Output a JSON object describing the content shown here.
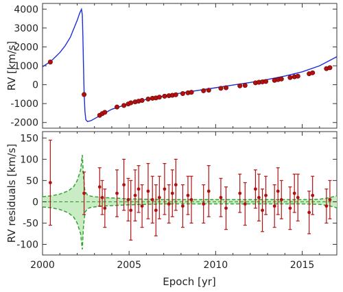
{
  "chart_data": [
    {
      "panel": "top",
      "type": "line",
      "ylabel": "RV [km/s]",
      "xlim": [
        2000,
        2017
      ],
      "ylim": [
        -2300,
        4300
      ],
      "yticks": [
        -2000,
        -1000,
        0,
        1000,
        2000,
        3000,
        4000
      ],
      "grid": false,
      "model_color": "#1a2bd6",
      "point_color": "#b01010",
      "model_curve": {
        "x": [
          2000.0,
          2000.5,
          2001.0,
          2001.3,
          2001.6,
          2001.8,
          2002.0,
          2002.15,
          2002.25,
          2002.3,
          2002.33,
          2002.36,
          2002.4,
          2002.45,
          2002.5,
          2002.6,
          2002.8,
          2003.0,
          2003.5,
          2004.0,
          2005.0,
          2006.0,
          2007.0,
          2008.0,
          2009.0,
          2010.0,
          2011.0,
          2012.0,
          2013.0,
          2014.0,
          2015.0,
          2016.0,
          2017.0
        ],
        "y": [
          950,
          1250,
          1700,
          2050,
          2500,
          2950,
          3400,
          3800,
          3990,
          3700,
          2600,
          1200,
          -400,
          -1400,
          -1850,
          -1950,
          -1900,
          -1800,
          -1550,
          -1300,
          -1000,
          -780,
          -600,
          -440,
          -300,
          -160,
          -20,
          120,
          280,
          460,
          680,
          1000,
          1480
        ]
      },
      "points": {
        "x": [
          2000.45,
          2002.4,
          2003.3,
          2003.45,
          2003.6,
          2004.3,
          2004.7,
          2004.95,
          2005.1,
          2005.35,
          2005.55,
          2005.75,
          2006.1,
          2006.35,
          2006.55,
          2006.75,
          2007.05,
          2007.3,
          2007.5,
          2007.7,
          2008.1,
          2008.4,
          2008.6,
          2009.3,
          2009.6,
          2010.3,
          2010.6,
          2011.4,
          2011.7,
          2012.3,
          2012.5,
          2012.7,
          2012.9,
          2013.4,
          2013.6,
          2013.8,
          2014.3,
          2014.55,
          2014.75,
          2015.4,
          2015.6,
          2016.4,
          2016.6
        ],
        "y": [
          1200,
          -520,
          -1620,
          -1530,
          -1460,
          -1180,
          -1100,
          -1020,
          -960,
          -910,
          -870,
          -830,
          -760,
          -720,
          -700,
          -660,
          -610,
          -580,
          -560,
          -530,
          -470,
          -430,
          -400,
          -320,
          -290,
          -190,
          -160,
          -60,
          -40,
          100,
          130,
          150,
          170,
          230,
          270,
          300,
          380,
          420,
          450,
          580,
          630,
          850,
          900
        ]
      }
    },
    {
      "panel": "bottom",
      "type": "scatter",
      "xlabel": "Epoch [yr]",
      "ylabel": "RV residuals [km/s]",
      "xlim": [
        2000,
        2017
      ],
      "ylim": [
        -125,
        165
      ],
      "xticks": [
        2000,
        2005,
        2010,
        2015
      ],
      "yticks": [
        -100,
        -50,
        0,
        50,
        100,
        150
      ],
      "grid": false,
      "point_color": "#b01010",
      "band_color": "#2fa12f",
      "band_fill": "#c9ecc4",
      "uncertainty_band": {
        "x": [
          2000.0,
          2000.5,
          2001.0,
          2001.5,
          2001.8,
          2002.0,
          2002.2,
          2002.3,
          2002.36,
          2002.45,
          2002.6,
          2002.8,
          2003.0,
          2003.5,
          2004.0,
          2005.0,
          2006.0,
          2007.0,
          2008.0,
          2009.0,
          2010.0,
          2011.0,
          2012.0,
          2013.0,
          2014.0,
          2015.0,
          2016.0,
          2016.5,
          2017.0
        ],
        "upper": [
          12,
          14,
          18,
          26,
          36,
          50,
          75,
          110,
          60,
          25,
          16,
          13,
          12,
          10,
          9,
          7,
          6,
          5,
          5,
          5,
          5,
          5,
          5,
          5,
          5,
          5,
          6,
          9,
          14
        ],
        "lower": [
          -12,
          -14,
          -18,
          -26,
          -36,
          -50,
          -75,
          -112,
          -60,
          -25,
          -16,
          -13,
          -12,
          -10,
          -9,
          -7,
          -6,
          -5,
          -5,
          -5,
          -5,
          -5,
          -5,
          -5,
          -5,
          -5,
          -6,
          -9,
          -14
        ]
      },
      "points": {
        "x": [
          2000.45,
          2002.4,
          2003.3,
          2003.45,
          2003.6,
          2004.3,
          2004.7,
          2004.95,
          2005.1,
          2005.35,
          2005.55,
          2005.75,
          2006.1,
          2006.35,
          2006.55,
          2006.75,
          2007.05,
          2007.3,
          2007.5,
          2007.7,
          2008.1,
          2008.4,
          2008.6,
          2009.3,
          2009.6,
          2010.3,
          2010.6,
          2011.4,
          2011.7,
          2012.3,
          2012.5,
          2012.7,
          2012.9,
          2013.4,
          2013.6,
          2013.8,
          2014.3,
          2014.55,
          2014.75,
          2015.4,
          2015.6,
          2016.4,
          2016.6
        ],
        "y": [
          45,
          20,
          35,
          10,
          -15,
          20,
          40,
          5,
          -20,
          15,
          30,
          -10,
          25,
          5,
          -20,
          10,
          30,
          -5,
          20,
          40,
          -10,
          15,
          5,
          -5,
          25,
          10,
          -15,
          20,
          -5,
          30,
          10,
          -20,
          15,
          -10,
          25,
          5,
          -15,
          20,
          10,
          -25,
          15,
          -10,
          5
        ],
        "err": [
          100,
          50,
          45,
          40,
          45,
          55,
          60,
          50,
          70,
          60,
          55,
          50,
          65,
          55,
          60,
          50,
          60,
          45,
          55,
          60,
          50,
          45,
          55,
          45,
          60,
          45,
          50,
          45,
          50,
          45,
          55,
          50,
          45,
          50,
          55,
          45,
          50,
          45,
          55,
          50,
          45,
          40,
          45
        ]
      }
    }
  ]
}
